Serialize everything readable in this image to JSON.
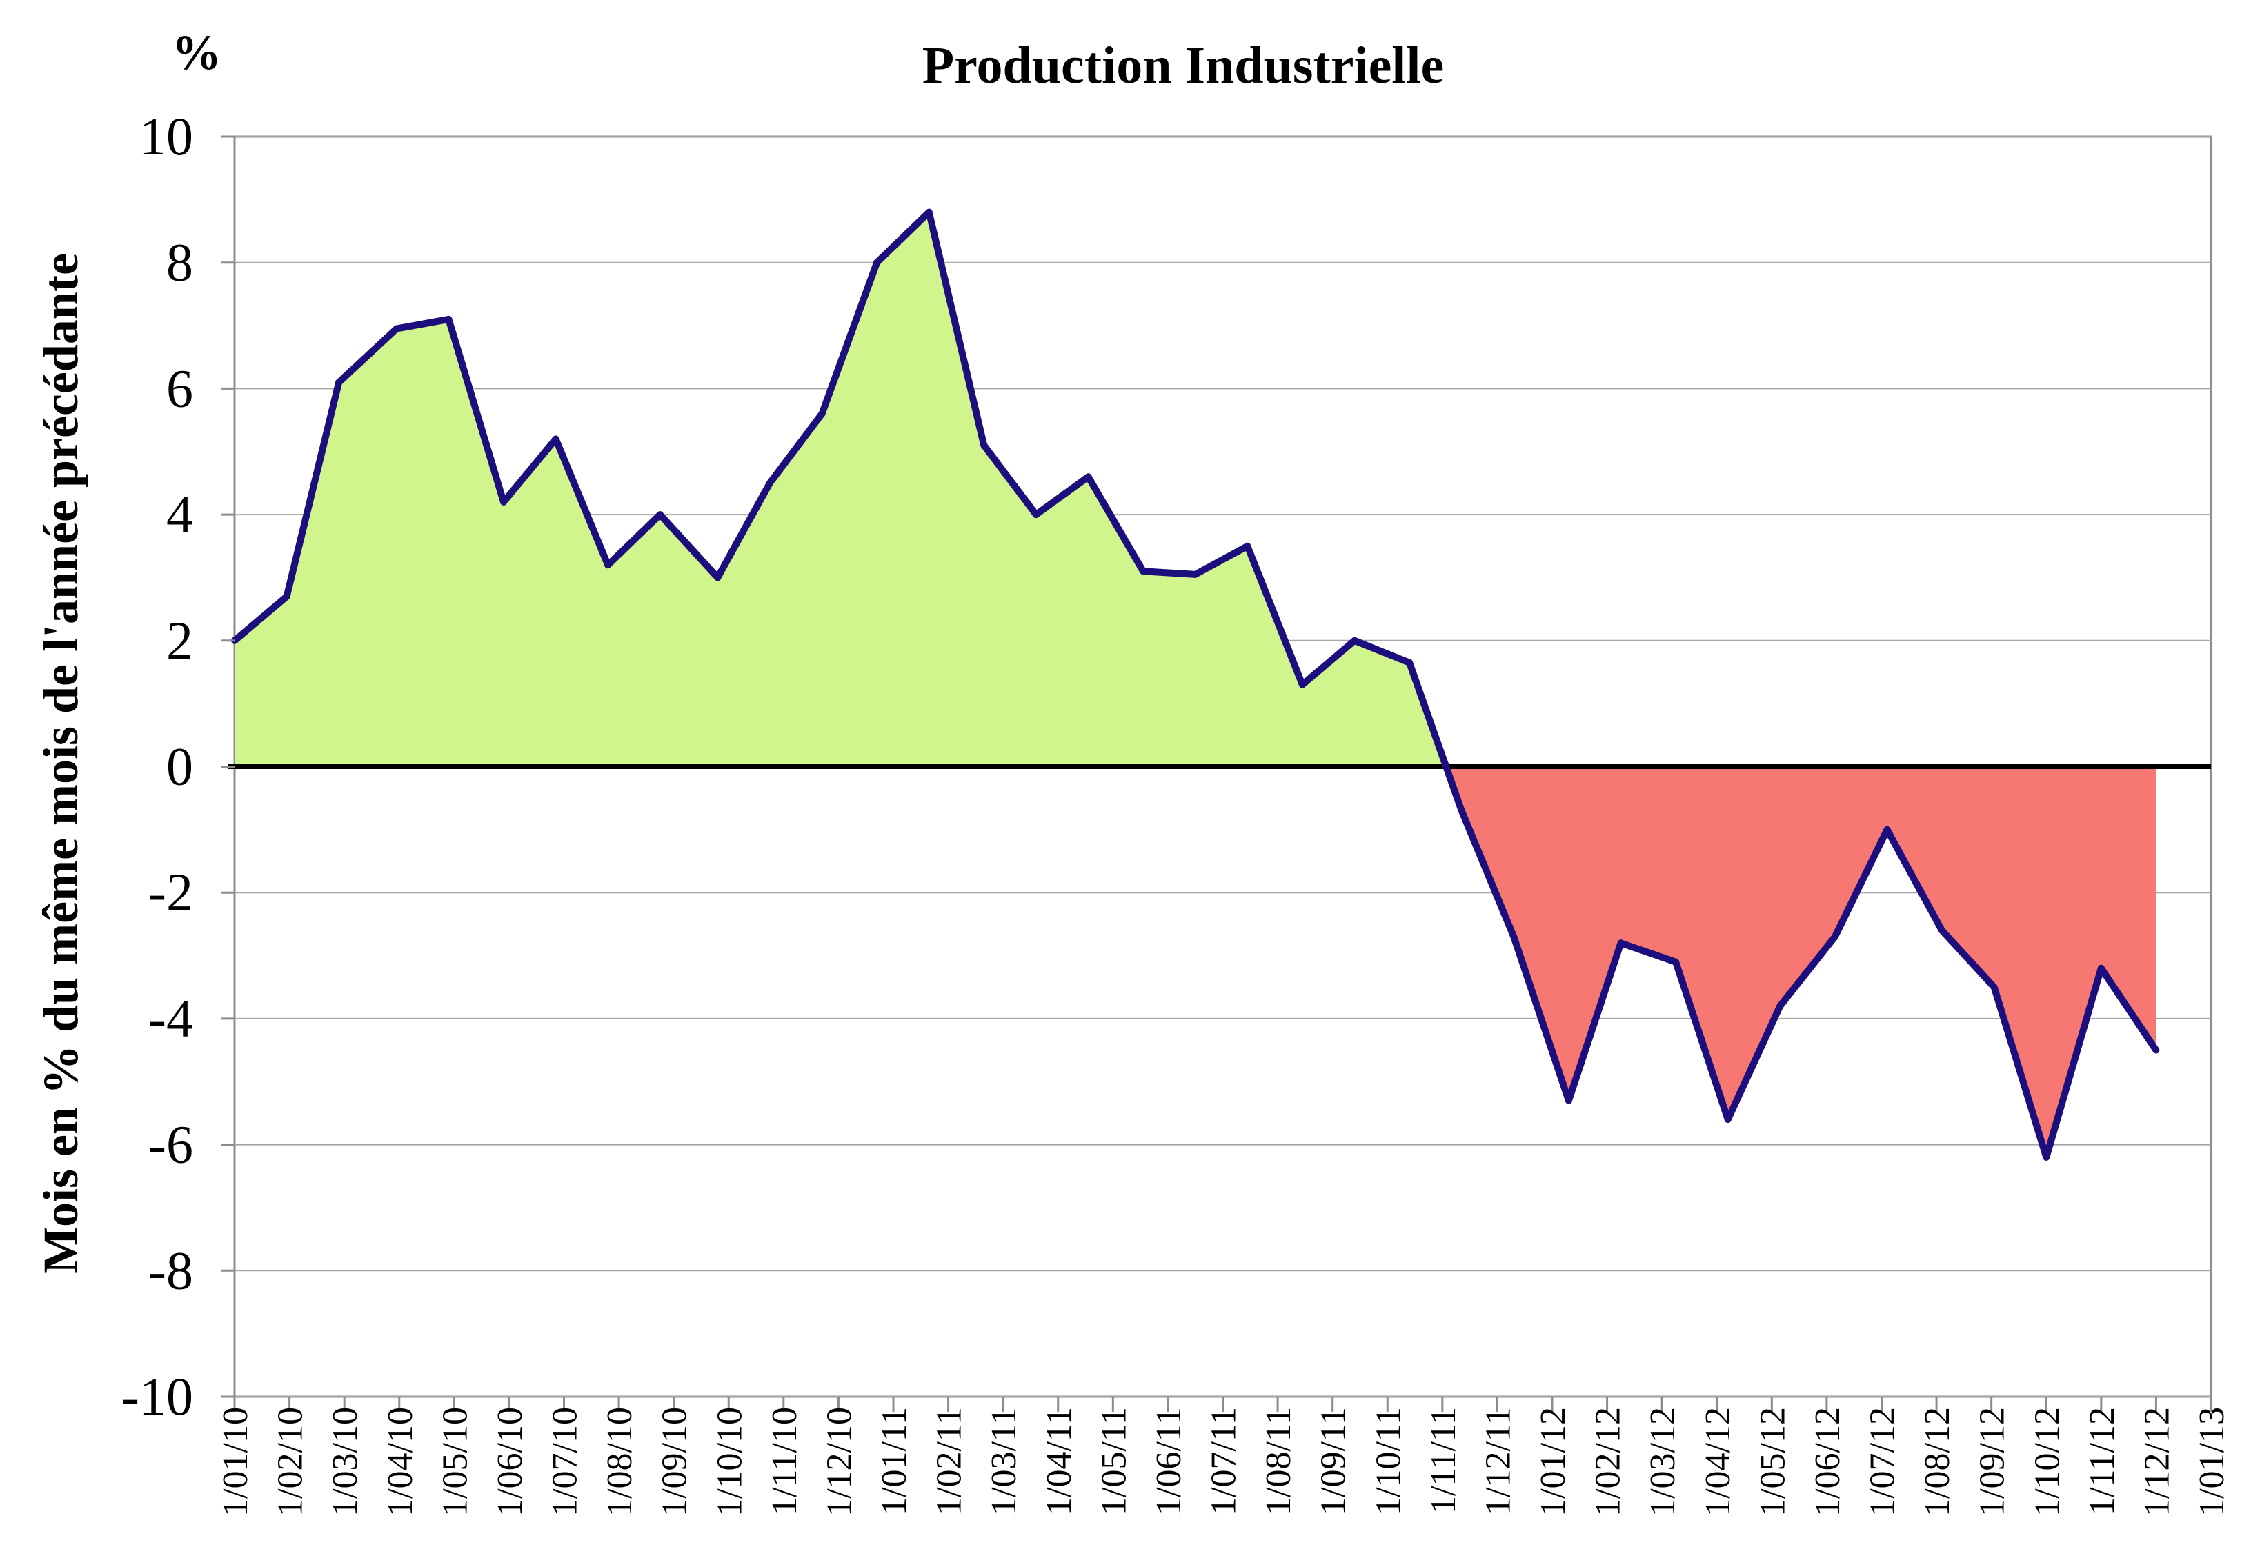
{
  "chart_data": {
    "type": "area",
    "title": "Production Industrielle",
    "unit_label": "%",
    "xlabel": "",
    "ylabel": "Mois en  % du même mois de l'année précédante",
    "ylim": [
      -10,
      10
    ],
    "yticks": [
      10,
      8,
      6,
      4,
      2,
      0,
      -2,
      -4,
      -6,
      -8,
      -10
    ],
    "ytick_labels": [
      "10",
      "8",
      "6",
      "4",
      "2",
      "0",
      "-2",
      "-4",
      "-6",
      "-8",
      "-10"
    ],
    "grid": true,
    "categories": [
      "1/01/10",
      "1/02/10",
      "1/03/10",
      "1/04/10",
      "1/05/10",
      "1/06/10",
      "1/07/10",
      "1/08/10",
      "1/09/10",
      "1/10/10",
      "1/11/10",
      "1/12/10",
      "1/01/11",
      "1/02/11",
      "1/03/11",
      "1/04/11",
      "1/05/11",
      "1/06/11",
      "1/07/11",
      "1/08/11",
      "1/09/11",
      "1/10/11",
      "1/11/11",
      "1/12/11",
      "1/01/12",
      "1/02/12",
      "1/03/12",
      "1/04/12",
      "1/05/12",
      "1/06/12",
      "1/07/12",
      "1/08/12",
      "1/09/12",
      "1/10/12",
      "1/11/12",
      "1/12/12",
      "1/01/13"
    ],
    "series": [
      {
        "name": "Production Industrielle",
        "x": [
          0,
          0.95,
          1.9,
          2.95,
          3.9,
          4.9,
          5.85,
          6.8,
          7.75,
          8.8,
          9.75,
          10.7,
          11.7,
          12.65,
          13.65,
          14.6,
          15.55,
          16.55,
          17.5,
          18.45,
          19.45,
          20.4,
          21.4,
          22.35,
          23.3,
          24.3,
          25.25,
          26.25,
          27.2,
          28.15,
          29.15,
          30.1,
          31.1,
          32.05,
          33.0,
          34.0,
          35.0
        ],
        "values": [
          2.0,
          2.7,
          6.1,
          6.95,
          7.1,
          4.2,
          5.2,
          3.2,
          4.0,
          3.0,
          4.5,
          5.6,
          8.0,
          8.8,
          5.1,
          4.0,
          4.6,
          3.1,
          3.05,
          3.5,
          1.3,
          2.0,
          1.65,
          -0.7,
          -2.7,
          -5.3,
          -2.8,
          -3.1,
          -5.6,
          -3.8,
          -2.7,
          -1.0,
          -2.6,
          -3.5,
          -6.2,
          -3.2,
          -4.5
        ]
      }
    ],
    "colors": {
      "line": "#1c0f7d",
      "positive_fill": "#d0f58c",
      "negative_fill": "#f77872",
      "grid": "#a6a6a6",
      "axis": "#8c8c8c",
      "zero_line": "#000000"
    }
  }
}
